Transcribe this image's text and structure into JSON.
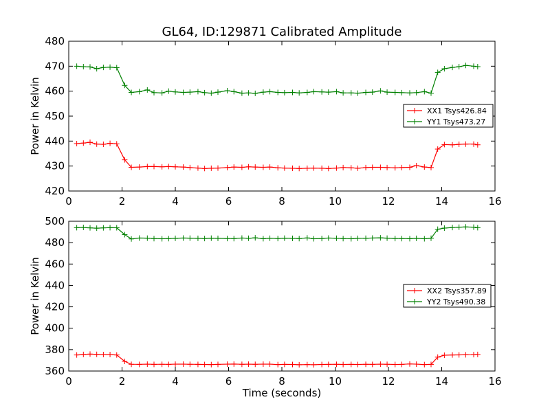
{
  "title": "GL64, ID:129871 Calibrated Amplitude",
  "chart_data": [
    {
      "type": "line",
      "xlabel": "",
      "ylabel": "Power in Kelvin",
      "xlim": [
        0,
        16
      ],
      "ylim": [
        420,
        480
      ],
      "xticks": [
        "0",
        "2",
        "4",
        "6",
        "8",
        "10",
        "12",
        "14",
        "16"
      ],
      "yticks": [
        "420",
        "430",
        "440",
        "450",
        "460",
        "470",
        "480"
      ],
      "legend_position": "center-right",
      "grid": false,
      "x": [
        0.3,
        0.55,
        0.8,
        1.05,
        1.3,
        1.55,
        1.8,
        2.1,
        2.35,
        2.65,
        2.95,
        3.2,
        3.5,
        3.75,
        4.0,
        4.3,
        4.55,
        4.85,
        5.1,
        5.35,
        5.6,
        5.95,
        6.2,
        6.5,
        6.75,
        7.0,
        7.3,
        7.55,
        7.85,
        8.1,
        8.4,
        8.65,
        8.95,
        9.2,
        9.5,
        9.75,
        10.05,
        10.3,
        10.6,
        10.85,
        11.15,
        11.4,
        11.7,
        11.95,
        12.25,
        12.5,
        12.8,
        13.05,
        13.35,
        13.6,
        13.85,
        14.1,
        14.4,
        14.65,
        14.9,
        15.2,
        15.35
      ],
      "series": [
        {
          "name": "XX1 Tsys426.84",
          "color": "#ff0000",
          "values": [
            439.0,
            439.2,
            439.5,
            438.8,
            438.7,
            439.1,
            438.9,
            432.5,
            429.5,
            429.6,
            429.8,
            429.8,
            429.7,
            429.8,
            429.7,
            429.6,
            429.4,
            429.2,
            429.0,
            429.1,
            429.2,
            429.4,
            429.6,
            429.5,
            429.7,
            429.6,
            429.5,
            429.6,
            429.3,
            429.2,
            429.1,
            429.0,
            429.1,
            429.2,
            429.1,
            429.0,
            429.2,
            429.4,
            429.3,
            429.1,
            429.4,
            429.5,
            429.5,
            429.4,
            429.3,
            429.4,
            429.5,
            430.2,
            429.6,
            429.4,
            436.8,
            438.6,
            438.5,
            438.7,
            438.8,
            438.8,
            438.5
          ]
        },
        {
          "name": "YY1 Tsys473.27",
          "color": "#008000",
          "values": [
            470.0,
            469.8,
            469.7,
            469.0,
            469.5,
            469.6,
            469.4,
            462.3,
            459.5,
            459.8,
            460.5,
            459.4,
            459.3,
            460.0,
            459.7,
            459.5,
            459.6,
            459.8,
            459.4,
            459.2,
            459.6,
            460.2,
            459.8,
            459.2,
            459.3,
            459.1,
            459.6,
            459.8,
            459.5,
            459.4,
            459.5,
            459.3,
            459.5,
            459.8,
            459.7,
            459.6,
            459.8,
            459.3,
            459.3,
            459.2,
            459.5,
            459.6,
            460.1,
            459.6,
            459.5,
            459.4,
            459.3,
            459.4,
            459.8,
            459.2,
            467.5,
            469.0,
            469.5,
            469.8,
            470.3,
            470.0,
            469.8
          ]
        }
      ]
    },
    {
      "type": "line",
      "xlabel": "Time (seconds)",
      "ylabel": "Power in Kelvin",
      "xlim": [
        0,
        16
      ],
      "ylim": [
        360,
        500
      ],
      "xticks": [
        "0",
        "2",
        "4",
        "6",
        "8",
        "10",
        "12",
        "14",
        "16"
      ],
      "yticks": [
        "360",
        "380",
        "400",
        "420",
        "440",
        "460",
        "480",
        "500"
      ],
      "legend_position": "center-right",
      "grid": false,
      "x": [
        0.3,
        0.55,
        0.8,
        1.05,
        1.3,
        1.55,
        1.8,
        2.1,
        2.35,
        2.65,
        2.95,
        3.2,
        3.5,
        3.75,
        4.0,
        4.3,
        4.55,
        4.85,
        5.1,
        5.35,
        5.6,
        5.95,
        6.2,
        6.5,
        6.75,
        7.0,
        7.3,
        7.55,
        7.85,
        8.1,
        8.4,
        8.65,
        8.95,
        9.2,
        9.5,
        9.75,
        10.05,
        10.3,
        10.6,
        10.85,
        11.15,
        11.4,
        11.7,
        11.95,
        12.25,
        12.5,
        12.8,
        13.05,
        13.35,
        13.6,
        13.85,
        14.1,
        14.4,
        14.65,
        14.9,
        15.2,
        15.35
      ],
      "series": [
        {
          "name": "XX2 Tsys357.89",
          "color": "#ff0000",
          "values": [
            375.0,
            375.5,
            375.8,
            375.6,
            375.4,
            375.4,
            375.0,
            369.0,
            366.3,
            366.2,
            366.4,
            366.2,
            366.3,
            366.2,
            366.4,
            366.4,
            366.3,
            366.2,
            366.1,
            366.0,
            366.2,
            366.4,
            366.5,
            366.3,
            366.4,
            366.3,
            366.4,
            366.4,
            366.0,
            366.2,
            366.1,
            365.9,
            366.0,
            365.9,
            366.1,
            366.2,
            366.3,
            366.1,
            366.2,
            366.1,
            366.3,
            366.2,
            366.4,
            366.3,
            366.1,
            366.2,
            366.6,
            366.4,
            366.0,
            366.2,
            373.0,
            374.8,
            375.0,
            375.1,
            375.2,
            375.3,
            375.5
          ]
        },
        {
          "name": "YY2 Tsys490.38",
          "color": "#008000",
          "values": [
            494.0,
            494.2,
            493.8,
            493.5,
            493.8,
            494.0,
            493.9,
            487.5,
            483.5,
            484.3,
            484.2,
            483.8,
            483.6,
            483.8,
            484.0,
            484.3,
            484.2,
            484.0,
            483.9,
            484.2,
            484.0,
            483.9,
            483.8,
            484.3,
            484.1,
            484.5,
            483.7,
            484.1,
            483.9,
            484.2,
            484.0,
            483.8,
            484.4,
            483.6,
            483.9,
            484.3,
            484.1,
            483.8,
            483.6,
            484.0,
            484.1,
            484.3,
            484.5,
            484.2,
            483.9,
            483.8,
            483.7,
            484.0,
            483.6,
            484.1,
            492.5,
            493.6,
            494.1,
            494.5,
            494.7,
            494.5,
            494.0
          ]
        }
      ]
    }
  ]
}
